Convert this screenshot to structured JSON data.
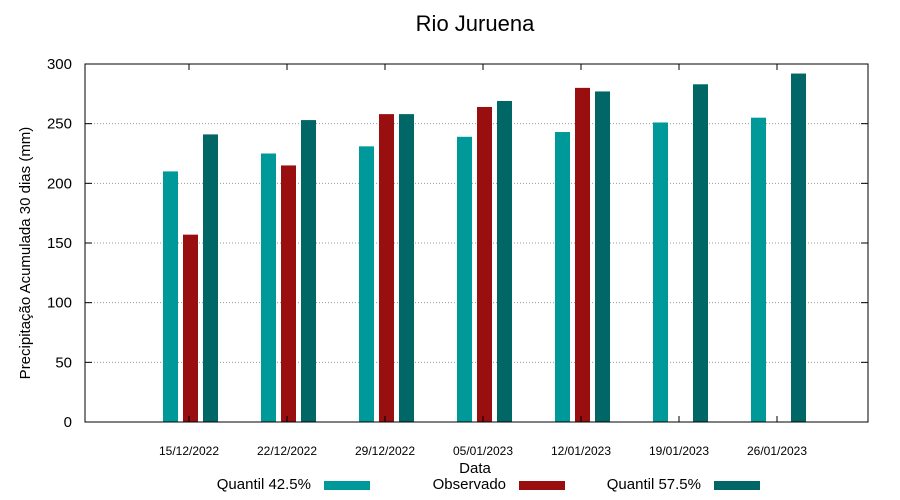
{
  "chart_data": {
    "type": "bar",
    "title": "Rio Juruena",
    "xlabel": "Data",
    "ylabel": "Precipitação Acumulada 30 dias (mm)",
    "ylim": [
      0,
      300
    ],
    "yticks": [
      0,
      50,
      100,
      150,
      200,
      250,
      300
    ],
    "grid": true,
    "legend_position": "bottom",
    "categories": [
      "15/12/2022",
      "22/12/2022",
      "29/12/2022",
      "05/01/2023",
      "12/01/2023",
      "19/01/2023",
      "26/01/2023"
    ],
    "series": [
      {
        "name": "Quantil 42.5%",
        "color": "#009999",
        "values": [
          210,
          225,
          231,
          239,
          243,
          251,
          255
        ]
      },
      {
        "name": "Observado",
        "color": "#990f0f",
        "values": [
          157,
          215,
          258,
          264,
          280,
          null,
          null
        ]
      },
      {
        "name": "Quantil 57.5%",
        "color": "#006666",
        "values": [
          241,
          253,
          258,
          269,
          277,
          283,
          292
        ]
      }
    ]
  }
}
